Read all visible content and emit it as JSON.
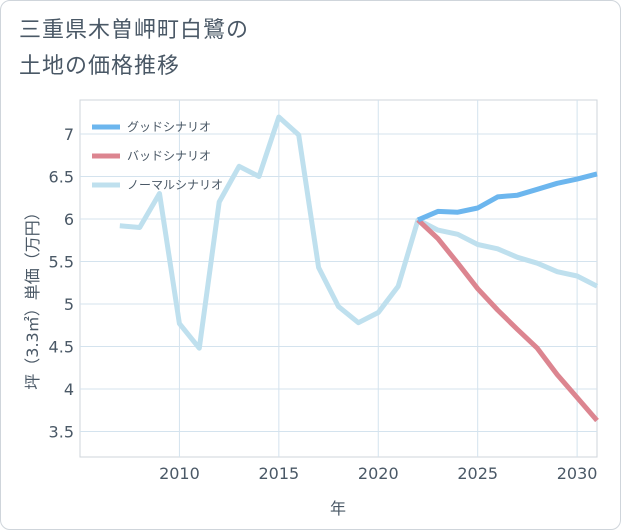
{
  "title_line1": "三重県木曽岬町白鷺の",
  "title_line2": "土地の価格推移",
  "chart_data": {
    "type": "line",
    "xlabel": "年",
    "ylabel": "坪（3.3㎡）単価（万円）",
    "xlim": [
      2005,
      2031
    ],
    "ylim": [
      3.2,
      7.4
    ],
    "xticks": [
      2010,
      2015,
      2020,
      2025,
      2030
    ],
    "yticks": [
      3.5,
      4,
      4.5,
      5,
      5.5,
      6,
      6.5,
      7
    ],
    "grid": true,
    "legend_position": "top-left",
    "series": [
      {
        "name": "グッドシナリオ",
        "color": "#6cb6ee",
        "x": [
          2022,
          2023,
          2024,
          2025,
          2026,
          2027,
          2028,
          2029,
          2030,
          2031
        ],
        "y": [
          5.99,
          6.09,
          6.08,
          6.13,
          6.26,
          6.28,
          6.35,
          6.42,
          6.47,
          6.53
        ]
      },
      {
        "name": "バッドシナリオ",
        "color": "#dc8590",
        "x": [
          2022,
          2023,
          2024,
          2025,
          2026,
          2027,
          2028,
          2029,
          2030,
          2031
        ],
        "y": [
          5.99,
          5.77,
          5.48,
          5.18,
          4.93,
          4.7,
          4.48,
          4.17,
          3.9,
          3.63
        ]
      },
      {
        "name": "ノーマルシナリオ",
        "color": "#bfe0ee",
        "x": [
          2007,
          2008,
          2009,
          2010,
          2011,
          2012,
          2013,
          2014,
          2015,
          2016,
          2017,
          2018,
          2019,
          2020,
          2021,
          2022,
          2023,
          2024,
          2025,
          2026,
          2027,
          2028,
          2029,
          2030,
          2031
        ],
        "y": [
          5.92,
          5.9,
          6.3,
          4.77,
          4.48,
          6.2,
          6.62,
          6.5,
          7.2,
          6.99,
          5.43,
          4.97,
          4.78,
          4.9,
          5.21,
          5.99,
          5.87,
          5.82,
          5.7,
          5.65,
          5.55,
          5.48,
          5.38,
          5.33,
          5.21
        ]
      }
    ]
  }
}
